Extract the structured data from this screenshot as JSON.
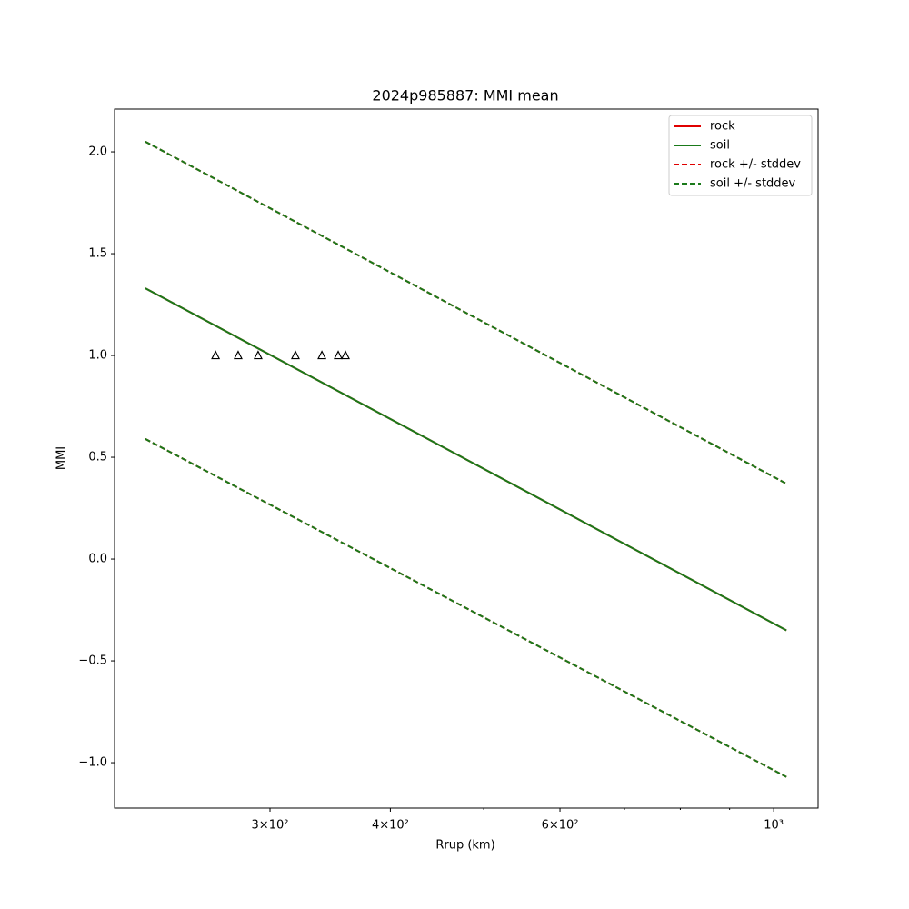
{
  "chart_data": {
    "type": "line",
    "title": "2024p985887: MMI mean",
    "xlabel": "Rrup (km)",
    "ylabel": "MMI",
    "xscale": "log",
    "xlim": [
      206.9,
      1112
    ],
    "ylim": [
      -1.223,
      2.21
    ],
    "xticks": [
      {
        "value": 300,
        "label": "3×10²"
      },
      {
        "value": 400,
        "label": "4×10²"
      },
      {
        "value": 600,
        "label": "6×10²"
      },
      {
        "value": 1000,
        "label": "10³"
      }
    ],
    "xminorticks": [
      500,
      700,
      800,
      900
    ],
    "yticks": [
      {
        "value": -1.0,
        "label": "−1.0"
      },
      {
        "value": -0.5,
        "label": "−0.5"
      },
      {
        "value": 0.0,
        "label": "0.0"
      },
      {
        "value": 0.5,
        "label": "0.5"
      },
      {
        "value": 1.0,
        "label": "1.0"
      },
      {
        "value": 1.5,
        "label": "1.5"
      },
      {
        "value": 2.0,
        "label": "2.0"
      }
    ],
    "legend": "upper right",
    "series": [
      {
        "name": "rock",
        "color": "#e00000",
        "style": "solid",
        "x": [
          222.7,
          1031
        ],
        "values": [
          1.33,
          -0.35
        ]
      },
      {
        "name": "soil",
        "color": "#1a7a1a",
        "style": "solid",
        "x": [
          222.7,
          1031
        ],
        "values": [
          1.33,
          -0.35
        ]
      },
      {
        "name": "rock +/- stddev",
        "color": "#e00000",
        "style": "dashed",
        "x": [
          222.7,
          1031
        ],
        "values": [
          2.05,
          0.37
        ],
        "lower": [
          0.59,
          -1.07
        ]
      },
      {
        "name": "soil +/- stddev",
        "color": "#1a7a1a",
        "style": "dashed",
        "x": [
          222.7,
          1031
        ],
        "values": [
          2.05,
          0.37
        ],
        "lower": [
          0.59,
          -1.07
        ]
      }
    ],
    "points": {
      "marker": "triangle",
      "color": "#000000",
      "x": [
        263.4,
        278,
        291.6,
        318.8,
        339.6,
        353.1,
        359.3
      ],
      "values": [
        1,
        1,
        1,
        1,
        1,
        1,
        1
      ]
    }
  }
}
